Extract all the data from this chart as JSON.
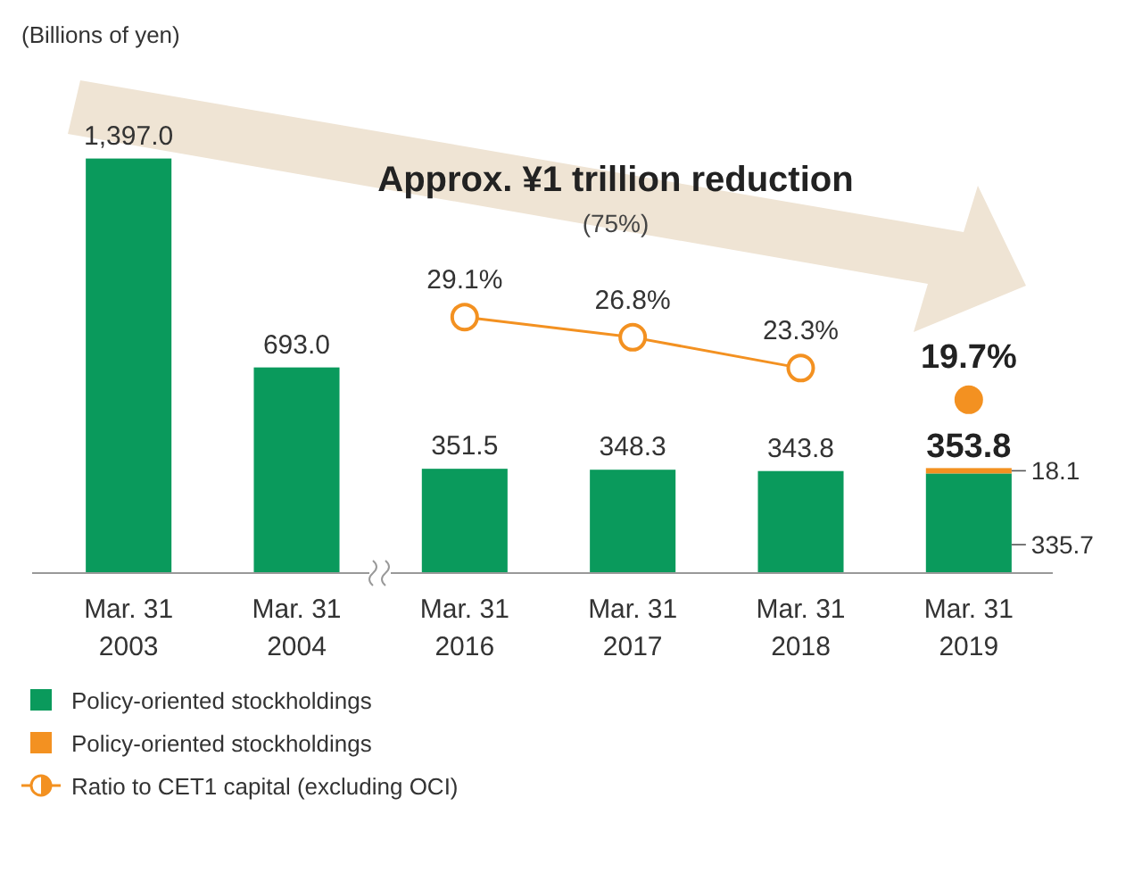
{
  "chart_data": {
    "type": "bar",
    "stacked": true,
    "categories": [
      "Mar. 31\n2003",
      "Mar. 31\n2004",
      "Mar. 31\n2016",
      "Mar. 31\n2017",
      "Mar. 31\n2018",
      "Mar. 31\n2019"
    ],
    "series": [
      {
        "name": "Policy-oriented stockholdings",
        "color": "#0a9a5c",
        "values": [
          1397.0,
          693.0,
          351.5,
          348.3,
          343.8,
          335.7
        ],
        "value_labels": [
          "1,397.0",
          "693.0",
          "351.5",
          "348.3",
          "343.8",
          "335.7"
        ]
      },
      {
        "name": "Policy-oriented stockholdings",
        "color": "#f39121",
        "values": [
          null,
          null,
          null,
          null,
          null,
          18.1
        ],
        "value_labels": [
          null,
          null,
          null,
          null,
          null,
          "18.1"
        ]
      },
      {
        "name": "Ratio to CET1 capital (excluding OCI)",
        "type": "line",
        "axis": "y2",
        "marker": "circle",
        "color": "#f39121",
        "values": [
          null,
          null,
          29.1,
          26.8,
          23.3,
          null
        ],
        "value_labels": [
          null,
          null,
          "29.1%",
          "26.8%",
          "23.3%",
          null
        ]
      },
      {
        "type": "scatter",
        "axis": "y2",
        "marker": "circle",
        "color": "#f39121",
        "values": [
          null,
          null,
          null,
          null,
          null,
          19.7
        ],
        "value_labels": [
          null,
          null,
          null,
          null,
          null,
          "19.7%"
        ]
      }
    ],
    "totals": [
      null,
      null,
      null,
      null,
      null,
      "353.8"
    ],
    "annotations": [
      "(Billions of yen)",
      "Approx. ¥1 trillion reduction",
      "(75%)"
    ],
    "legend": "bottom left"
  }
}
